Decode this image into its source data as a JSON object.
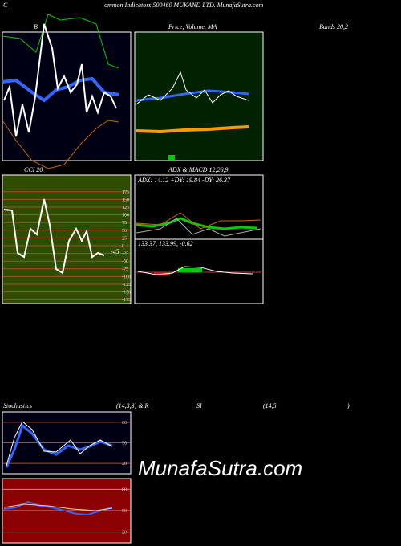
{
  "header": {
    "prefix": "C",
    "title": "ommon Indicators 500460 MUKAND LTD. MunafaSutra.com"
  },
  "panels": {
    "bollinger": {
      "title_left": "B",
      "title_right": "Bands 20,2"
    },
    "price": {
      "title": "Price, Volume, MA"
    },
    "cci": {
      "title": "CCI 20",
      "last_label": "-45",
      "ticks": [
        "175",
        "150",
        "125",
        "100",
        "75",
        "50",
        "25",
        "0",
        "-25",
        "-50",
        "-75",
        "-100",
        "-125",
        "-150",
        "-175"
      ]
    },
    "adx_macd": {
      "title": "ADX  & MACD 12,26,9",
      "adx_text": "ADX: 14.12  +DY: 19.84  -DY: 26.37",
      "macd_text": "133.37,  133.99,  -0.62"
    },
    "stochastics": {
      "title": "Stochastics",
      "params": "(14,3,3) & R",
      "ticks": [
        "80",
        "50",
        "20"
      ]
    },
    "rsi": {
      "title_a": "SI",
      "title_b": "(14,5",
      "title_c": ")",
      "ticks": [
        "80",
        "50",
        "20"
      ]
    }
  },
  "watermark": "MunafaSutra.com"
}
